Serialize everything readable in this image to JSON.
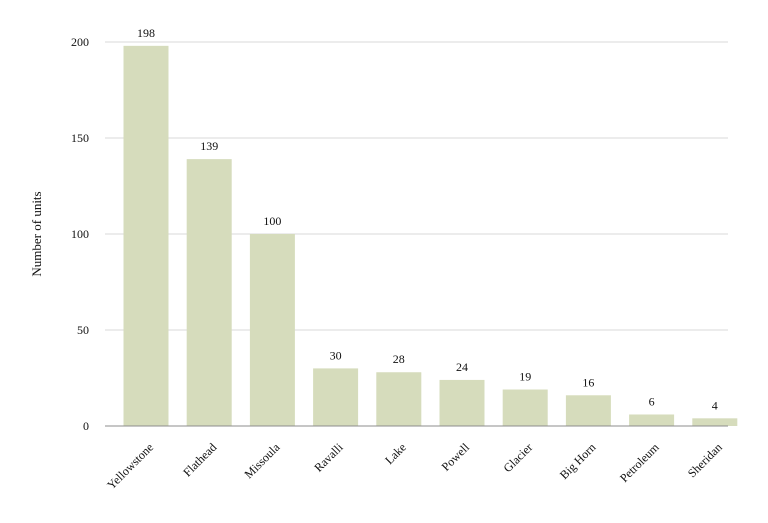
{
  "chart_data": {
    "type": "bar",
    "title": "",
    "xlabel": "",
    "ylabel": "Number of units",
    "categories": [
      "Yellowstone",
      "Flathead",
      "Missoula",
      "Ravalli",
      "Lake",
      "Powell",
      "Glacier",
      "Big Horn",
      "Petroleum",
      "Sheridan"
    ],
    "values": [
      198,
      139,
      100,
      30,
      28,
      24,
      19,
      16,
      6,
      4
    ],
    "ylim": [
      0,
      200
    ],
    "yticks": [
      0,
      50,
      100,
      150,
      200
    ],
    "grid": true,
    "legend": "none",
    "bar_color": "#d6dcbc",
    "grid_color": "#d9d9d9",
    "axis_color": "#8c8c8c"
  }
}
